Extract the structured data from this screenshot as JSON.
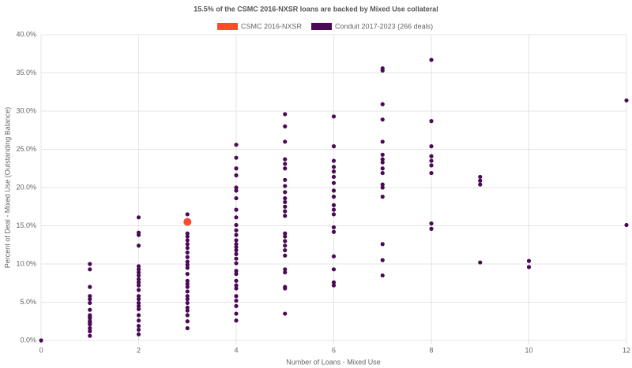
{
  "chart_data": {
    "type": "scatter",
    "title": "15.5% of the CSMC 2016-NXSR loans are backed by Mixed Use collateral",
    "x_label": "Number of Loans - Mixed Use",
    "y_label": "Percent of Deal - Mixed Use (Outstanding Balance)",
    "xlim": [
      0,
      12
    ],
    "xticks": [
      0,
      2,
      4,
      6,
      8,
      10,
      12
    ],
    "ylim": [
      0,
      40
    ],
    "yticks": [
      {
        "value": 0,
        "label": "0.0%"
      },
      {
        "value": 5,
        "label": "5.0%"
      },
      {
        "value": 10,
        "label": "10.0%"
      },
      {
        "value": 15,
        "label": "15.0%"
      },
      {
        "value": 20,
        "label": "20.0%"
      },
      {
        "value": 25,
        "label": "25.0%"
      },
      {
        "value": 30,
        "label": "30.0%"
      },
      {
        "value": 35,
        "label": "35.0%"
      },
      {
        "value": 40,
        "label": "40.0%"
      }
    ],
    "grid": true,
    "series": [
      {
        "name": "CSMC 2016-NXSR",
        "color": "#ff4a2c",
        "x": [
          3
        ],
        "values": [
          15.5
        ]
      },
      {
        "name": "Conduit 2017-2023 (266 deals)",
        "color": "#4a0a55",
        "x": [
          0,
          1,
          1,
          1,
          1,
          1,
          1,
          1,
          1,
          1,
          1,
          1,
          1,
          1,
          1,
          1,
          1,
          2,
          2,
          2,
          2,
          2,
          2,
          2,
          2,
          2,
          2,
          2,
          2,
          2,
          2,
          2,
          2,
          2,
          2,
          2,
          2,
          2,
          2,
          3,
          3,
          3,
          3,
          3,
          3,
          3,
          3,
          3,
          3,
          3,
          3,
          3,
          3,
          3,
          3,
          3,
          3,
          3,
          3,
          3,
          3,
          3,
          3,
          4,
          4,
          4,
          4,
          4,
          4,
          4,
          4,
          4,
          4,
          4,
          4,
          4,
          4,
          4,
          4,
          4,
          4,
          4,
          4,
          4,
          4,
          4,
          4,
          4,
          4,
          4,
          4,
          4,
          5,
          5,
          5,
          5,
          5,
          5,
          5,
          5,
          5,
          5,
          5,
          5,
          5,
          5,
          5,
          5,
          5,
          5,
          5,
          5,
          5,
          5,
          5,
          5,
          5,
          6,
          6,
          6,
          6,
          6,
          6,
          6,
          6,
          6,
          6,
          6,
          6,
          6,
          6,
          6,
          6,
          6,
          6,
          7,
          7,
          7,
          7,
          7,
          7,
          7,
          7,
          7,
          7,
          7,
          7,
          7,
          7,
          7,
          7,
          8,
          8,
          8,
          8,
          8,
          8,
          8,
          8,
          8,
          9,
          9,
          9,
          9,
          10,
          10,
          12,
          12
        ],
        "values": [
          0,
          10.0,
          9.3,
          7.0,
          5.8,
          5.4,
          4.9,
          4.0,
          3.3,
          2.9,
          2.5,
          2.1,
          1.6,
          1.2,
          0.6,
          3.1,
          2.3,
          16.1,
          14.1,
          13.8,
          12.4,
          9.7,
          9.3,
          8.9,
          8.5,
          8.0,
          7.6,
          7.2,
          6.6,
          5.8,
          5.4,
          4.9,
          4.5,
          4.1,
          3.3,
          2.6,
          1.9,
          1.4,
          0.8,
          16.5,
          14.0,
          13.6,
          13.1,
          12.6,
          12.1,
          11.5,
          10.9,
          10.3,
          9.9,
          9.5,
          8.7,
          7.8,
          7.4,
          7.0,
          6.4,
          5.8,
          5.4,
          4.9,
          4.3,
          3.9,
          3.3,
          2.5,
          1.6,
          25.6,
          23.9,
          22.5,
          21.6,
          20.0,
          19.6,
          18.6,
          17.1,
          16.1,
          15.1,
          14.4,
          13.8,
          13.1,
          12.6,
          12.2,
          11.8,
          11.3,
          10.7,
          10.1,
          9.1,
          8.7,
          7.8,
          7.2,
          6.8,
          5.8,
          5.2,
          4.5,
          3.5,
          2.6,
          29.6,
          28.0,
          26.0,
          23.7,
          23.1,
          22.5,
          21.0,
          20.2,
          19.4,
          18.6,
          18.1,
          17.5,
          16.9,
          16.3,
          14.0,
          13.6,
          13.0,
          12.4,
          11.8,
          11.1,
          9.3,
          8.9,
          7.0,
          6.8,
          3.5,
          29.3,
          25.4,
          23.5,
          22.7,
          22.1,
          21.4,
          20.6,
          19.6,
          18.8,
          17.7,
          17.1,
          16.5,
          14.8,
          14.2,
          11.0,
          9.3,
          7.6,
          7.2,
          35.6,
          35.3,
          30.9,
          28.9,
          26.0,
          24.3,
          23.7,
          23.3,
          22.5,
          21.9,
          20.4,
          20.0,
          18.8,
          12.6,
          10.5,
          8.5,
          36.7,
          28.7,
          25.4,
          24.1,
          23.5,
          22.9,
          21.9,
          15.3,
          14.6,
          21.4,
          20.9,
          20.4,
          10.2,
          10.4,
          9.6,
          31.4,
          15.1
        ]
      }
    ]
  }
}
